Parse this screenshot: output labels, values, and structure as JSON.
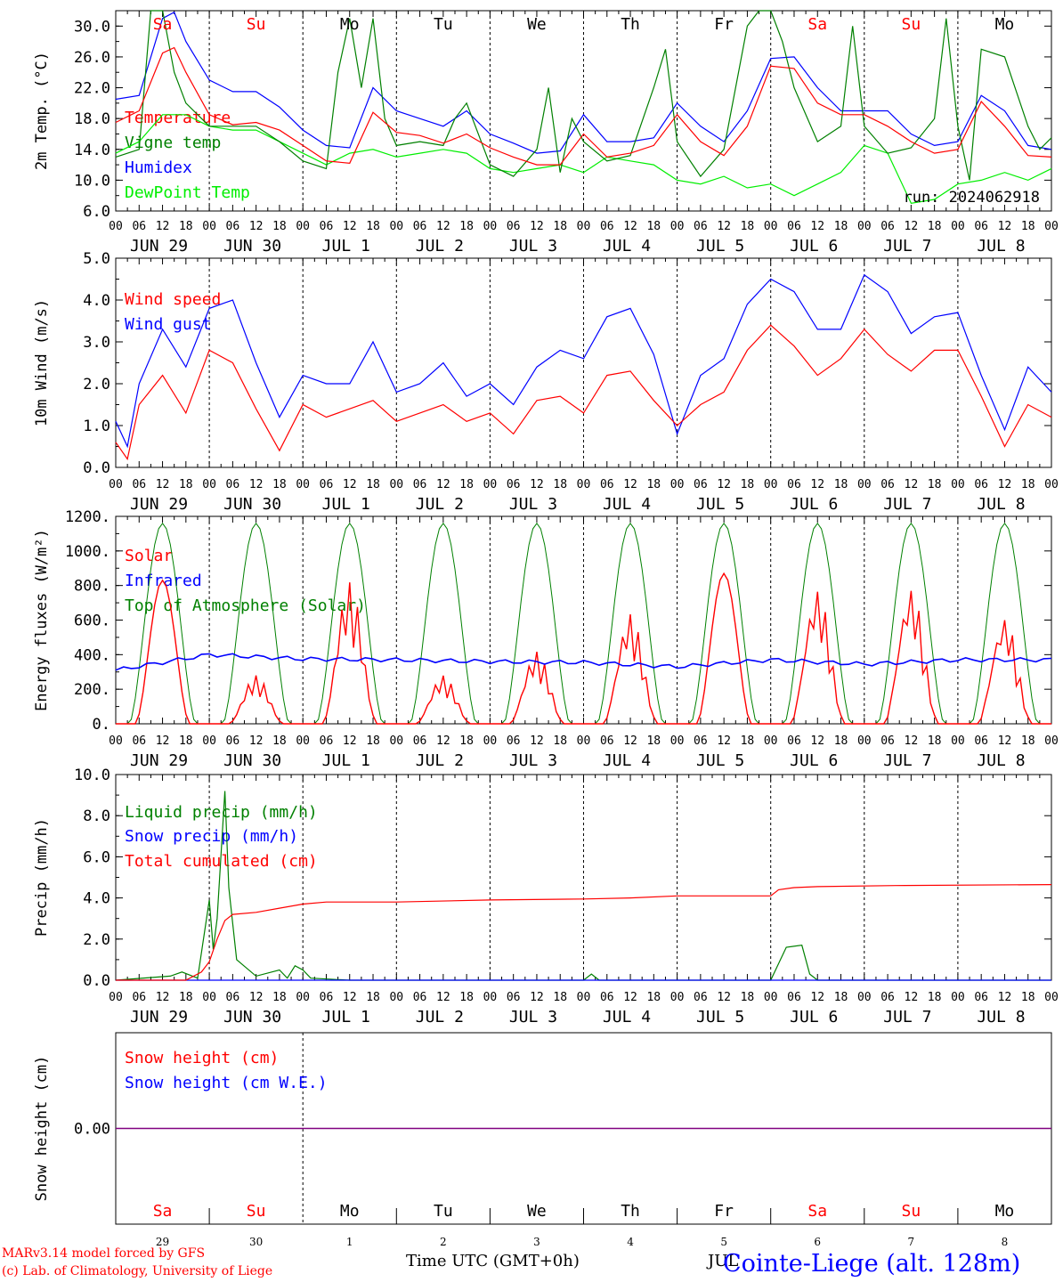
{
  "run_label": "run: 2024062918",
  "footer": {
    "model": "MARv3.14 model forced by GFS",
    "lab": "(c) Lab. of Climatology, University of Liege",
    "station": "Cointe-Liege (alt. 128m)",
    "xlabel": "Time UTC (GMT+0h)",
    "month_label": "JUL"
  },
  "colors": {
    "red": "#ff0000",
    "green": "#008000",
    "blue": "#0000ff",
    "light_green": "#00ee00",
    "purple": "#800080",
    "weekend": "#ff0000",
    "weekday": "#000000"
  },
  "days": [
    {
      "abbr": "Sa",
      "weekend": true,
      "date_label": "JUN 29",
      "num": "29"
    },
    {
      "abbr": "Su",
      "weekend": true,
      "date_label": "JUN 30",
      "num": "30"
    },
    {
      "abbr": "Mo",
      "weekend": false,
      "date_label": "JUL  1",
      "num": "1"
    },
    {
      "abbr": "Tu",
      "weekend": false,
      "date_label": "JUL  2",
      "num": "2"
    },
    {
      "abbr": "We",
      "weekend": false,
      "date_label": "JUL  3",
      "num": "3"
    },
    {
      "abbr": "Th",
      "weekend": false,
      "date_label": "JUL  4",
      "num": "4"
    },
    {
      "abbr": "Fr",
      "weekend": false,
      "date_label": "JUL  5",
      "num": "5"
    },
    {
      "abbr": "Sa",
      "weekend": true,
      "date_label": "JUL  6",
      "num": "6"
    },
    {
      "abbr": "Su",
      "weekend": true,
      "date_label": "JUL  7",
      "num": "7"
    },
    {
      "abbr": "Mo",
      "weekend": false,
      "date_label": "JUL  8",
      "num": "8"
    }
  ],
  "hour_ticks": [
    "00",
    "06",
    "12",
    "18"
  ],
  "chart_data": [
    {
      "type": "line",
      "ylabel": "2m Temp. (°C)",
      "ylim": [
        6,
        32
      ],
      "yticks": [
        "6.0",
        "10.0",
        "14.0",
        "18.0",
        "22.0",
        "26.0",
        "30.0"
      ],
      "ytick_values": [
        6,
        10,
        14,
        18,
        22,
        26,
        30
      ],
      "x_unit": "hours since JUN 29 00 UTC",
      "series": [
        {
          "name": "Temperature",
          "color": "red",
          "x": [
            0,
            6,
            12,
            15,
            18,
            24,
            30,
            36,
            42,
            48,
            54,
            60,
            66,
            72,
            78,
            84,
            90,
            96,
            102,
            108,
            114,
            120,
            126,
            132,
            138,
            144,
            150,
            156,
            162,
            168,
            174,
            180,
            186,
            192,
            198,
            204,
            210,
            216,
            222,
            228,
            234,
            240
          ],
          "values": [
            17.5,
            19,
            26.5,
            27.2,
            24,
            18.5,
            17.2,
            17.5,
            16.5,
            14.5,
            12.5,
            12.2,
            18.8,
            16.2,
            15.8,
            14.8,
            16,
            14.2,
            13,
            12,
            12,
            16,
            13,
            13.5,
            14.5,
            18.5,
            15,
            13.2,
            17,
            24.8,
            24.5,
            20,
            18.5,
            18.5,
            17,
            15,
            13.5,
            14,
            20.2,
            17,
            13.2,
            13
          ]
        },
        {
          "name": "Vigne temp",
          "color": "green",
          "x": [
            0,
            6,
            9,
            12,
            15,
            18,
            24,
            30,
            36,
            42,
            48,
            54,
            57,
            60,
            63,
            66,
            69,
            72,
            78,
            84,
            87,
            90,
            96,
            102,
            108,
            111,
            114,
            117,
            120,
            126,
            132,
            138,
            141,
            144,
            150,
            156,
            162,
            165,
            168,
            171,
            174,
            180,
            186,
            189,
            192,
            198,
            204,
            210,
            213,
            216,
            219,
            222,
            228,
            234,
            237,
            240
          ],
          "values": [
            13,
            14,
            32,
            32,
            24,
            20,
            17,
            17,
            17,
            15,
            12.5,
            11.5,
            24,
            31,
            22,
            31,
            18,
            14.5,
            15,
            14.5,
            18,
            20,
            12,
            10.5,
            14,
            22,
            11,
            18,
            15,
            12.5,
            13.2,
            22,
            27,
            15,
            10.5,
            14,
            30,
            32,
            32,
            28,
            22,
            15,
            17,
            30,
            17,
            13.5,
            14.2,
            18,
            31,
            17,
            10,
            27,
            26,
            17,
            14,
            15.5
          ]
        },
        {
          "name": "Humidex",
          "color": "blue",
          "x": [
            0,
            6,
            12,
            15,
            18,
            24,
            30,
            36,
            42,
            48,
            54,
            60,
            66,
            72,
            78,
            84,
            90,
            96,
            102,
            108,
            114,
            120,
            126,
            132,
            138,
            144,
            150,
            156,
            162,
            168,
            174,
            180,
            186,
            192,
            198,
            204,
            210,
            216,
            222,
            228,
            234,
            240
          ],
          "values": [
            20.5,
            21,
            31,
            31.8,
            28,
            23,
            21.5,
            21.5,
            19.5,
            16.5,
            14.5,
            14.2,
            22,
            19,
            18,
            17,
            19,
            16,
            14.8,
            13.5,
            13.8,
            18.5,
            15,
            15,
            15.5,
            20,
            17,
            15,
            19,
            25.8,
            26,
            22,
            19,
            19,
            19,
            16,
            14.5,
            15,
            21,
            19,
            14.5,
            14
          ]
        },
        {
          "name": "DewPoint Temp",
          "color": "light_green",
          "x": [
            0,
            6,
            12,
            18,
            24,
            30,
            36,
            42,
            48,
            54,
            60,
            66,
            72,
            78,
            84,
            90,
            96,
            102,
            108,
            114,
            120,
            126,
            132,
            138,
            144,
            150,
            156,
            162,
            168,
            174,
            180,
            186,
            192,
            198,
            204,
            210,
            216,
            222,
            228,
            234,
            240
          ],
          "values": [
            13.5,
            15,
            18.5,
            18.5,
            17,
            16.5,
            16.5,
            15,
            13.5,
            12,
            13.5,
            14,
            13,
            13.5,
            14,
            13.5,
            11.5,
            11,
            11.5,
            12,
            11,
            13,
            12.5,
            12,
            10,
            9.5,
            10.5,
            9,
            9.5,
            8,
            9.5,
            11,
            14.5,
            13.5,
            7,
            7.5,
            9.5,
            10,
            11,
            10,
            11.5
          ]
        }
      ]
    },
    {
      "type": "line",
      "ylabel": "10m Wind (m/s)",
      "ylim": [
        0,
        5
      ],
      "yticks": [
        "0.0",
        "1.0",
        "2.0",
        "3.0",
        "4.0",
        "5.0"
      ],
      "ytick_values": [
        0,
        1,
        2,
        3,
        4,
        5
      ],
      "x_unit": "hours since JUN 29 00 UTC",
      "series": [
        {
          "name": "Wind speed",
          "color": "red",
          "x": [
            0,
            3,
            6,
            12,
            18,
            24,
            30,
            36,
            42,
            48,
            54,
            60,
            66,
            72,
            78,
            84,
            90,
            96,
            102,
            108,
            114,
            120,
            126,
            132,
            138,
            144,
            150,
            156,
            162,
            168,
            174,
            180,
            186,
            192,
            198,
            204,
            210,
            216,
            222,
            228,
            234,
            240
          ],
          "values": [
            0.6,
            0.2,
            1.5,
            2.2,
            1.3,
            2.8,
            2.5,
            1.4,
            0.4,
            1.5,
            1.2,
            1.4,
            1.6,
            1.1,
            1.3,
            1.5,
            1.1,
            1.3,
            0.8,
            1.6,
            1.7,
            1.3,
            2.2,
            2.3,
            1.6,
            1.0,
            1.5,
            1.8,
            2.8,
            3.4,
            2.9,
            2.2,
            2.6,
            3.3,
            2.7,
            2.3,
            2.8,
            2.8,
            1.7,
            0.5,
            1.5,
            1.2
          ]
        },
        {
          "name": "Wind gust",
          "color": "blue",
          "x": [
            0,
            3,
            6,
            12,
            18,
            24,
            30,
            36,
            42,
            48,
            54,
            60,
            66,
            72,
            78,
            84,
            90,
            96,
            102,
            108,
            114,
            120,
            126,
            132,
            138,
            144,
            150,
            156,
            162,
            168,
            174,
            180,
            186,
            192,
            198,
            204,
            210,
            216,
            222,
            228,
            234,
            240
          ],
          "values": [
            1.1,
            0.5,
            2.0,
            3.3,
            2.4,
            3.8,
            4.0,
            2.5,
            1.2,
            2.2,
            2.0,
            2.0,
            3.0,
            1.8,
            2.0,
            2.5,
            1.7,
            2.0,
            1.5,
            2.4,
            2.8,
            2.6,
            3.6,
            3.8,
            2.7,
            0.8,
            2.2,
            2.6,
            3.9,
            4.5,
            4.2,
            3.3,
            3.3,
            4.6,
            4.2,
            3.2,
            3.6,
            3.7,
            2.2,
            0.9,
            2.4,
            1.8
          ]
        }
      ]
    },
    {
      "type": "line",
      "ylabel": "Energy fluxes (W/m²)",
      "ylim": [
        0,
        1200
      ],
      "yticks": [
        "0.",
        "200.",
        "400.",
        "600.",
        "800.",
        "1000.",
        "1200."
      ],
      "ytick_values": [
        0,
        200,
        400,
        600,
        800,
        1000,
        1200
      ],
      "x_unit": "hours since JUN 29 00 UTC",
      "series": [
        {
          "name": "Solar",
          "color": "red",
          "peaks": [
            830,
            280,
            820,
            280,
            420,
            640,
            870,
            780,
            790,
            620
          ],
          "values": [
            830,
            280,
            820,
            280,
            420,
            640,
            870,
            780,
            790,
            620
          ]
        },
        {
          "name": "Infrared",
          "color": "blue",
          "values": [
            310,
            400,
            375,
            370,
            360,
            355,
            330,
            370,
            345,
            370
          ]
        },
        {
          "name": "Top of Atmosphere (Solar)",
          "color": "green",
          "peak": 1160,
          "values": [
            1160
          ]
        }
      ]
    },
    {
      "type": "line",
      "ylabel": "Precip (mm/h)",
      "ylim": [
        0,
        10
      ],
      "yticks": [
        "0.0",
        "2.0",
        "4.0",
        "6.0",
        "8.0",
        "10.0"
      ],
      "ytick_values": [
        0,
        2,
        4,
        6,
        8,
        10
      ],
      "x_unit": "hours since JUN 29 00 UTC",
      "series": [
        {
          "name": "Liquid precip (mm/h)",
          "color": "green",
          "x": [
            0,
            14,
            17,
            21,
            24,
            25,
            26,
            28,
            29,
            31,
            36,
            42,
            44,
            46,
            48,
            50,
            60,
            120,
            122,
            124,
            168,
            172,
            176,
            178,
            180,
            240
          ],
          "values": [
            0,
            0.2,
            0.4,
            0.1,
            3.9,
            1.5,
            3.0,
            9.2,
            4.5,
            1.0,
            0.2,
            0.5,
            0.1,
            0.7,
            0.5,
            0.1,
            0,
            0,
            0.3,
            0,
            0,
            1.6,
            1.7,
            0.3,
            0,
            0
          ]
        },
        {
          "name": "Snow precip (mm/h)",
          "color": "blue",
          "x": [
            0,
            240
          ],
          "values": [
            0,
            0
          ]
        },
        {
          "name": "Total cumulated (cm)",
          "color": "red",
          "x": [
            0,
            18,
            22,
            24,
            26,
            28,
            30,
            36,
            42,
            48,
            54,
            72,
            96,
            120,
            132,
            144,
            168,
            170,
            174,
            180,
            200,
            240
          ],
          "values": [
            0,
            0,
            0.4,
            0.9,
            2.0,
            2.9,
            3.2,
            3.3,
            3.5,
            3.7,
            3.8,
            3.8,
            3.9,
            3.95,
            4.0,
            4.1,
            4.1,
            4.4,
            4.5,
            4.55,
            4.6,
            4.65
          ]
        }
      ]
    },
    {
      "type": "line",
      "ylabel": "Snow height (cm)",
      "ylim": [
        -1,
        1
      ],
      "yticks": [
        "0.00"
      ],
      "ytick_values": [
        0
      ],
      "series": [
        {
          "name": "Snow height (cm)",
          "color": "red",
          "x": [
            0,
            240
          ],
          "values": [
            0,
            0
          ]
        },
        {
          "name": "Snow height (cm W.E.)",
          "color": "blue",
          "x": [
            0,
            240
          ],
          "values": [
            0,
            0
          ]
        }
      ]
    }
  ]
}
